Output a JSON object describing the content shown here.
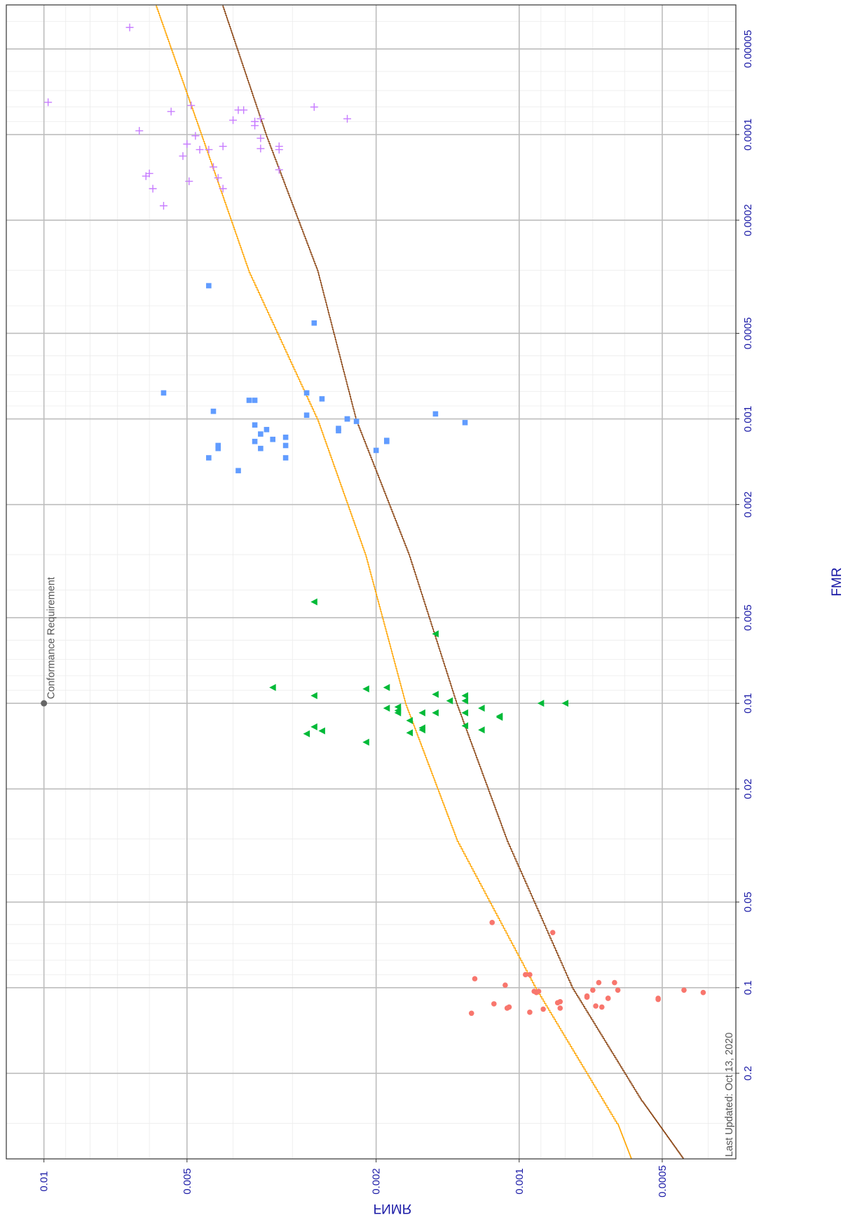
{
  "chart_data": {
    "type": "scatter",
    "orientation": "rotated-90-ccw",
    "xlabel": "FMR",
    "ylabel": "FNMR",
    "x_scale": "log",
    "y_scale": "log",
    "xlim": [
      3.5e-05,
      0.4
    ],
    "ylim": [
      0.00035,
      0.012
    ],
    "x_ticks": [
      {
        "value": 5e-05,
        "label": "0.00005"
      },
      {
        "value": 0.0001,
        "label": "0.0001"
      },
      {
        "value": 0.0002,
        "label": "0.0002"
      },
      {
        "value": 0.0005,
        "label": "0.0005"
      },
      {
        "value": 0.001,
        "label": "0.001"
      },
      {
        "value": 0.002,
        "label": "0.002"
      },
      {
        "value": 0.005,
        "label": "0.005"
      },
      {
        "value": 0.01,
        "label": "0.01"
      },
      {
        "value": 0.02,
        "label": "0.02"
      },
      {
        "value": 0.05,
        "label": "0.05"
      },
      {
        "value": 0.1,
        "label": "0.1"
      },
      {
        "value": 0.2,
        "label": "0.2"
      }
    ],
    "y_ticks": [
      {
        "value": 0.01,
        "label": "0.01"
      },
      {
        "value": 0.005,
        "label": "0.005"
      },
      {
        "value": 0.002,
        "label": "0.002"
      },
      {
        "value": 0.001,
        "label": "0.001"
      },
      {
        "value": 0.0005,
        "label": "0.0005"
      }
    ],
    "grid": true,
    "annotations": [
      {
        "text": "Conformance Requirement",
        "fmr": 0.01,
        "fnmr": 0.01
      },
      {
        "text": "Last Updated: Oct 13, 2020"
      }
    ],
    "curves": [
      {
        "color": "#ffa500",
        "points": [
          [
            3.5e-05,
            0.0058
          ],
          [
            0.0001,
            0.00465
          ],
          [
            0.0003,
            0.0037
          ],
          [
            0.001,
            0.00265
          ],
          [
            0.003,
            0.0021
          ],
          [
            0.01,
            0.00173
          ],
          [
            0.03,
            0.00135
          ],
          [
            0.1,
            0.00092
          ],
          [
            0.3,
            0.00062
          ],
          [
            0.4,
            0.00058
          ]
        ]
      },
      {
        "color": "#8b4513",
        "points": [
          [
            3.5e-05,
            0.0042
          ],
          [
            0.0001,
            0.0034
          ],
          [
            0.0003,
            0.00265
          ],
          [
            0.001,
            0.0022
          ],
          [
            0.003,
            0.0017
          ],
          [
            0.01,
            0.00135
          ],
          [
            0.03,
            0.00106
          ],
          [
            0.1,
            0.00077
          ],
          [
            0.25,
            0.00055
          ],
          [
            0.4,
            0.00045
          ]
        ]
      }
    ],
    "series": [
      {
        "marker": "cross",
        "color": "#c77cff",
        "points": [
          [
            4.2e-05,
            0.0066
          ],
          [
            7.7e-05,
            0.0098
          ],
          [
            9.7e-05,
            0.0063
          ],
          [
            0.000137,
            0.006
          ],
          [
            0.00014,
            0.0061
          ],
          [
            0.000155,
            0.0059
          ],
          [
            0.000178,
            0.0056
          ],
          [
            8.3e-05,
            0.0054
          ],
          [
            7.9e-05,
            0.0049
          ],
          [
            0.000101,
            0.0048
          ],
          [
            0.000108,
            0.005
          ],
          [
            0.000119,
            0.0051
          ],
          [
            0.000113,
            0.0047
          ],
          [
            0.000113,
            0.0045
          ],
          [
            0.00013,
            0.0044
          ],
          [
            0.000146,
            0.00495
          ],
          [
            0.000142,
            0.0043
          ],
          [
            0.000155,
            0.0042
          ],
          [
            0.00011,
            0.0042
          ],
          [
            8.9e-05,
            0.004
          ],
          [
            8.2e-05,
            0.0039
          ],
          [
            8.2e-05,
            0.0038
          ],
          [
            9e-05,
            0.0036
          ],
          [
            9.3e-05,
            0.0036
          ],
          [
            0.000103,
            0.0035
          ],
          [
            0.000112,
            0.0035
          ],
          [
            8.8e-05,
            0.0035
          ],
          [
            0.000113,
            0.0032
          ],
          [
            0.00011,
            0.0032
          ],
          [
            0.000133,
            0.0032
          ],
          [
            8e-05,
            0.0027
          ],
          [
            8.8e-05,
            0.0023
          ]
        ]
      },
      {
        "marker": "square",
        "color": "#619cff",
        "points": [
          [
            0.00081,
            0.0056
          ],
          [
            0.00034,
            0.0045
          ],
          [
            0.00094,
            0.0044
          ],
          [
            0.00137,
            0.0045
          ],
          [
            0.00127,
            0.0043
          ],
          [
            0.00124,
            0.0043
          ],
          [
            0.00152,
            0.0039
          ],
          [
            0.00086,
            0.0037
          ],
          [
            0.00086,
            0.0036
          ],
          [
            0.00105,
            0.0036
          ],
          [
            0.0012,
            0.0036
          ],
          [
            0.00127,
            0.0035
          ],
          [
            0.00113,
            0.0035
          ],
          [
            0.00109,
            0.0034
          ],
          [
            0.00118,
            0.0033
          ],
          [
            0.00124,
            0.0031
          ],
          [
            0.00137,
            0.0031
          ],
          [
            0.00116,
            0.0031
          ],
          [
            0.00097,
            0.0028
          ],
          [
            0.00081,
            0.0028
          ],
          [
            0.00046,
            0.0027
          ],
          [
            0.00085,
            0.0026
          ],
          [
            0.00108,
            0.0024
          ],
          [
            0.0011,
            0.0024
          ],
          [
            0.001,
            0.0023
          ],
          [
            0.001,
            0.0023
          ],
          [
            0.00102,
            0.0022
          ],
          [
            0.00129,
            0.002
          ],
          [
            0.00119,
            0.0019
          ],
          [
            0.0012,
            0.0019
          ],
          [
            0.00096,
            0.0015
          ],
          [
            0.00103,
            0.0013
          ]
        ]
      },
      {
        "marker": "triangle-left",
        "color": "#00ba38",
        "points": [
          [
            0.0088,
            0.0033
          ],
          [
            0.0044,
            0.0027
          ],
          [
            0.0128,
            0.0028
          ],
          [
            0.0094,
            0.0027
          ],
          [
            0.0121,
            0.0027
          ],
          [
            0.0125,
            0.0026
          ],
          [
            0.0137,
            0.0021
          ],
          [
            0.0089,
            0.0021
          ],
          [
            0.0104,
            0.0019
          ],
          [
            0.0108,
            0.0018
          ],
          [
            0.0103,
            0.0018
          ],
          [
            0.0106,
            0.0018
          ],
          [
            0.0088,
            0.0019
          ],
          [
            0.0127,
            0.0017
          ],
          [
            0.0122,
            0.0016
          ],
          [
            0.0108,
            0.0016
          ],
          [
            0.0124,
            0.0016
          ],
          [
            0.0115,
            0.0017
          ],
          [
            0.0108,
            0.0015
          ],
          [
            0.0093,
            0.0015
          ],
          [
            0.0098,
            0.0014
          ],
          [
            0.0057,
            0.0015
          ],
          [
            0.012,
            0.0013
          ],
          [
            0.0108,
            0.0013
          ],
          [
            0.0098,
            0.0013
          ],
          [
            0.0094,
            0.0013
          ],
          [
            0.0124,
            0.0012
          ],
          [
            0.0111,
            0.0011
          ],
          [
            0.0112,
            0.0011
          ],
          [
            0.0104,
            0.0012
          ],
          [
            0.01,
            0.0009
          ],
          [
            0.01,
            0.0008
          ]
        ]
      },
      {
        "marker": "circle",
        "color": "#f8766d",
        "points": [
          [
            0.093,
            0.00124
          ],
          [
            0.059,
            0.00114
          ],
          [
            0.118,
            0.00106
          ],
          [
            0.114,
            0.00113
          ],
          [
            0.098,
            0.00107
          ],
          [
            0.122,
            0.00095
          ],
          [
            0.117,
            0.00105
          ],
          [
            0.09,
            0.00097
          ],
          [
            0.09,
            0.00095
          ],
          [
            0.104,
            0.00092
          ],
          [
            0.103,
            0.00093
          ],
          [
            0.103,
            0.00091
          ],
          [
            0.119,
            0.00089
          ],
          [
            0.113,
            0.00083
          ],
          [
            0.112,
            0.00082
          ],
          [
            0.118,
            0.00082
          ],
          [
            0.064,
            0.00085
          ],
          [
            0.108,
            0.00072
          ],
          [
            0.107,
            0.00072
          ],
          [
            0.102,
            0.0007
          ],
          [
            0.096,
            0.00068
          ],
          [
            0.117,
            0.00067
          ],
          [
            0.109,
            0.00065
          ],
          [
            0.109,
            0.00065
          ],
          [
            0.096,
            0.00063
          ],
          [
            0.102,
            0.00062
          ],
          [
            0.109,
            0.00051
          ],
          [
            0.11,
            0.00051
          ],
          [
            0.102,
            0.00045
          ],
          [
            0.104,
            0.00041
          ],
          [
            0.116,
            0.00069
          ],
          [
            0.123,
            0.00126
          ]
        ]
      }
    ]
  }
}
